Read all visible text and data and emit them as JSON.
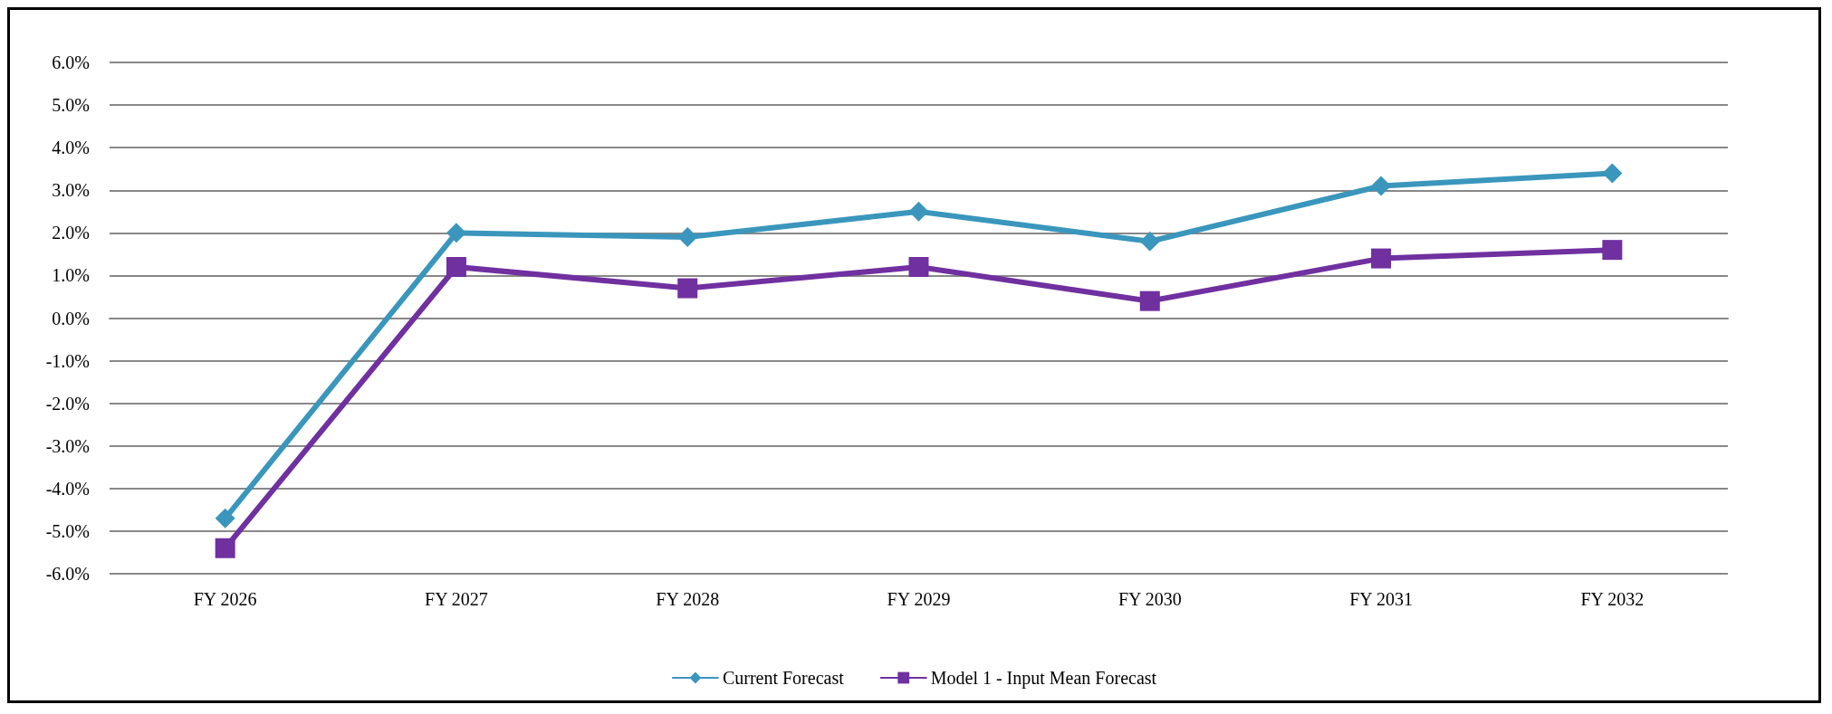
{
  "chart_data": {
    "type": "line",
    "categories": [
      "FY 2026",
      "FY 2027",
      "FY 2028",
      "FY 2029",
      "FY 2030",
      "FY 2031",
      "FY 2032"
    ],
    "series": [
      {
        "name": "Current Forecast",
        "color": "#3a96bc",
        "marker": "diamond",
        "values": [
          -4.7,
          2.0,
          1.9,
          2.5,
          1.8,
          3.1,
          3.4
        ]
      },
      {
        "name": "Model 1 - Input Mean Forecast",
        "color": "#7030a0",
        "marker": "square",
        "values": [
          -5.4,
          1.2,
          0.7,
          1.2,
          0.4,
          1.4,
          1.6
        ]
      }
    ],
    "ylim": [
      -6,
      6
    ],
    "yticks": [
      {
        "value": -6,
        "label": "-6.0%"
      },
      {
        "value": -5,
        "label": "-5.0%"
      },
      {
        "value": -4,
        "label": "-4.0%"
      },
      {
        "value": -3,
        "label": "-3.0%"
      },
      {
        "value": -2,
        "label": "-2.0%"
      },
      {
        "value": -1,
        "label": "-1.0%"
      },
      {
        "value": 0,
        "label": "0.0%"
      },
      {
        "value": 1,
        "label": "1.0%"
      },
      {
        "value": 2,
        "label": "2.0%"
      },
      {
        "value": 3,
        "label": "3.0%"
      },
      {
        "value": 4,
        "label": "4.0%"
      },
      {
        "value": 5,
        "label": "5.0%"
      },
      {
        "value": 6,
        "label": "6.0%"
      }
    ],
    "grid": "y",
    "legend": "bottom",
    "line_style": "solid"
  }
}
